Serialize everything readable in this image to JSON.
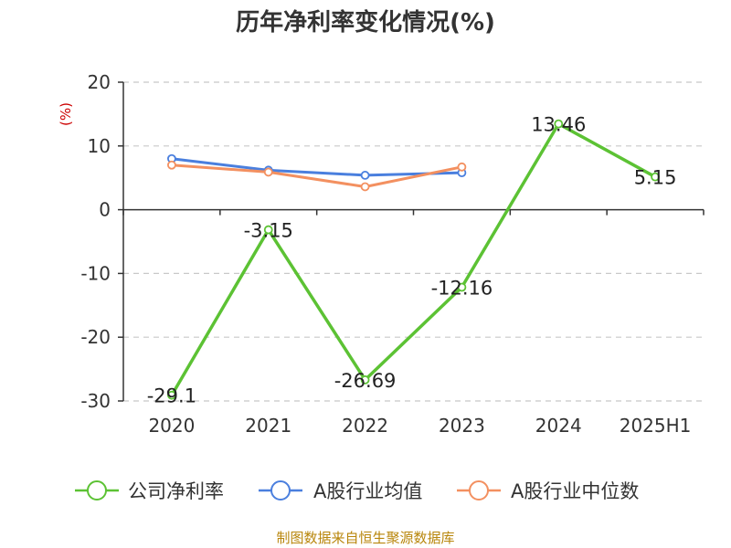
{
  "chart_data": {
    "type": "line",
    "title": "历年净利率变化情况(%)",
    "ylabel": "(%)",
    "categories": [
      "2020",
      "2021",
      "2022",
      "2023",
      "2024",
      "2025H1"
    ],
    "ylim": [
      -30,
      20
    ],
    "yticks": [
      20,
      10,
      0,
      -10,
      -20,
      -30
    ],
    "grid": true,
    "legend_position": "bottom",
    "series": [
      {
        "name": "公司净利率",
        "color": "#5cc234",
        "values": [
          -29.1,
          -3.15,
          -26.69,
          -12.16,
          13.46,
          5.15
        ],
        "labels": [
          "-29.1",
          "-3.15",
          "-26.69",
          "-12.16",
          "13.46",
          "5.15"
        ]
      },
      {
        "name": "A股行业均值",
        "color": "#4a7fde",
        "values": [
          8.0,
          6.2,
          5.4,
          5.8,
          null,
          null
        ]
      },
      {
        "name": "A股行业中位数",
        "color": "#f39060",
        "values": [
          7.0,
          5.9,
          3.6,
          6.7,
          null,
          null
        ]
      }
    ],
    "source": "制图数据来自恒生聚源数据库"
  }
}
